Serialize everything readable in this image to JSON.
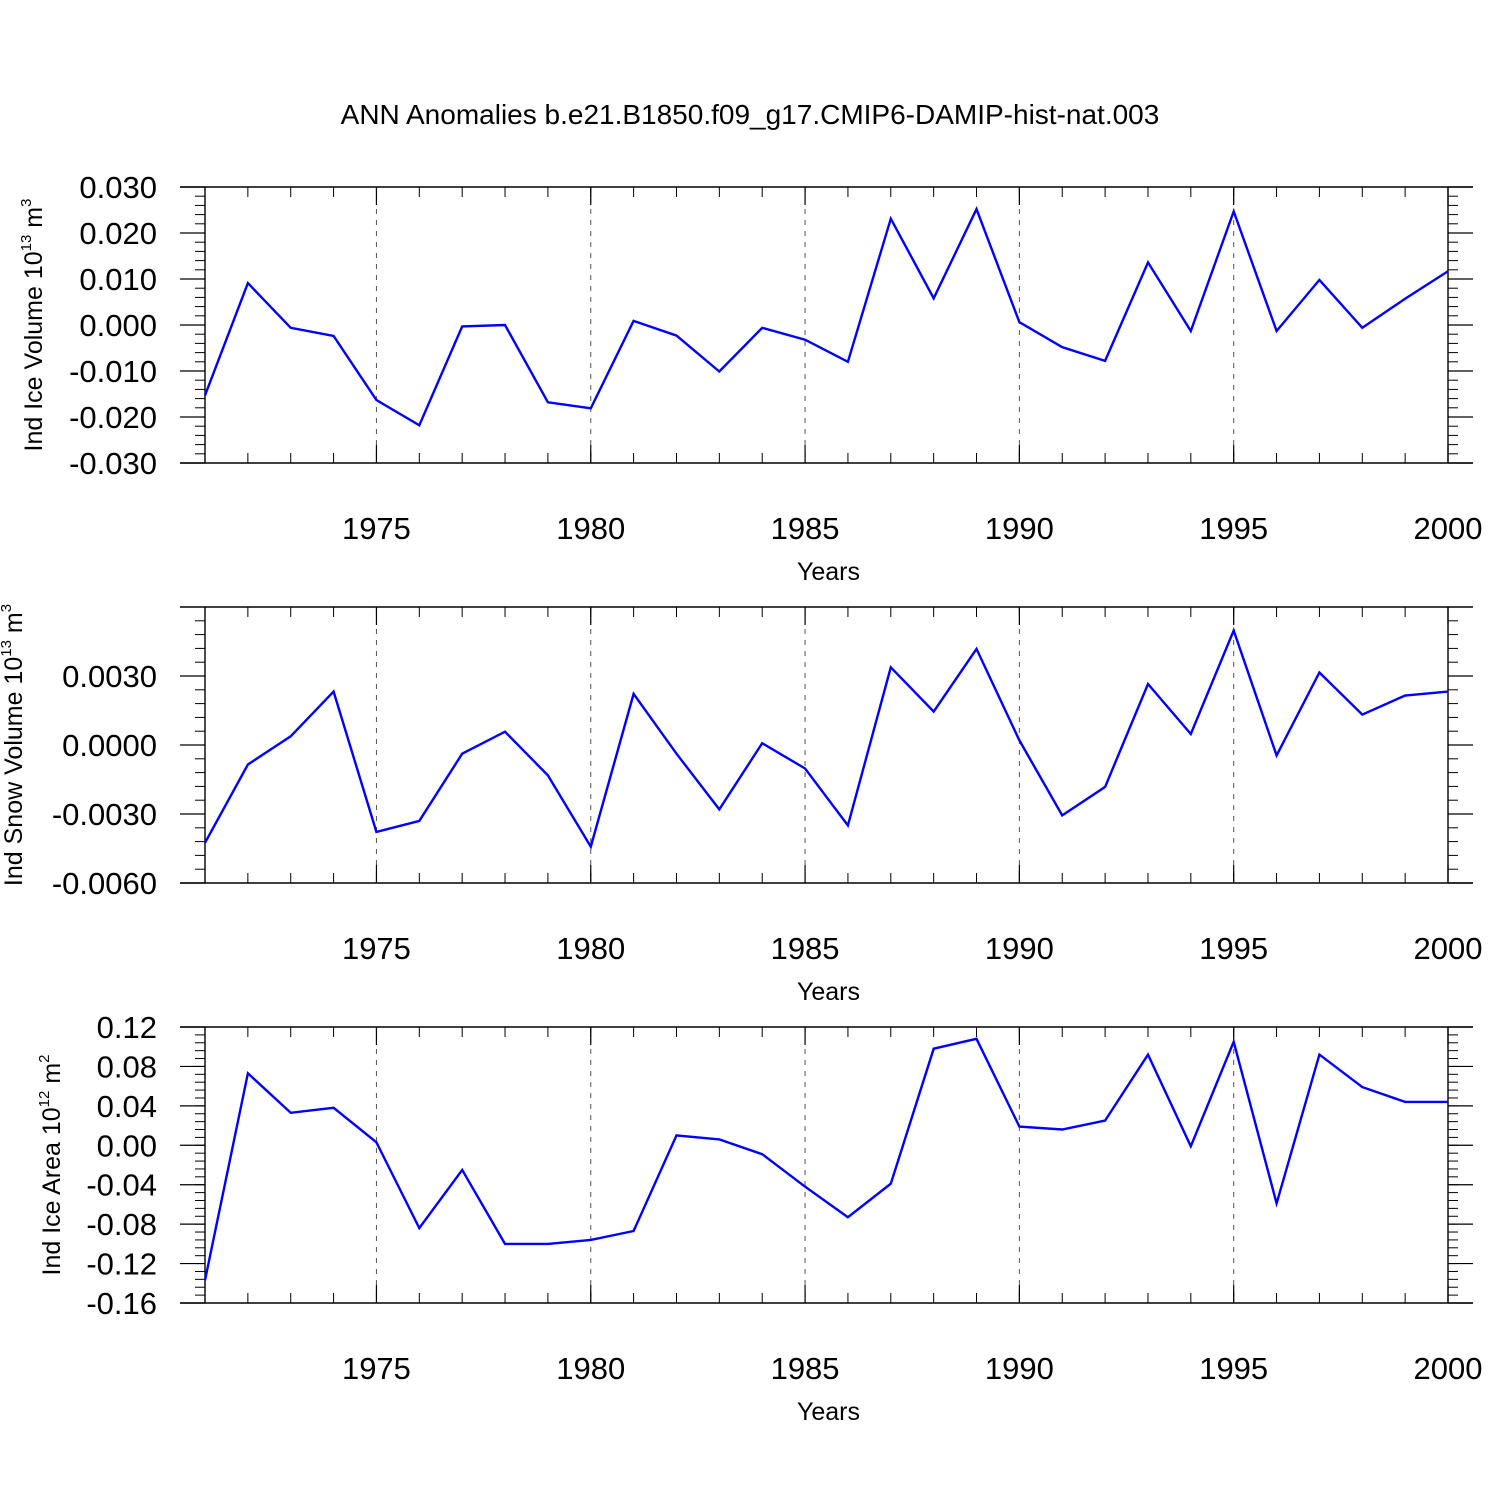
{
  "title": "ANN Anomalies b.e21.B1850.f09_g17.CMIP6-DAMIP-hist-nat.003",
  "line_color": "#0000ff",
  "chart_data": [
    {
      "type": "line",
      "name": "ind-ice-volume",
      "ylabel": {
        "base": "Ind Ice Volume 10",
        "exp1": "13",
        "unit": " m",
        "exp2": "3"
      },
      "xlabel": "Years",
      "xlim": [
        1971,
        2000
      ],
      "ylim": [
        -0.03,
        0.03
      ],
      "xticks": [
        1975,
        1980,
        1985,
        1990,
        1995,
        2000
      ],
      "xtick_labels": [
        "1975",
        "1980",
        "1985",
        "1990",
        "1995",
        "2000"
      ],
      "yticks": [
        -0.03,
        -0.02,
        -0.01,
        0.0,
        0.01,
        0.02,
        0.03
      ],
      "ytick_labels": [
        "-0.030",
        "-0.020",
        "-0.010",
        "0.000",
        "0.010",
        "0.020",
        "0.030"
      ],
      "grid": "vertical dashed at major x ticks",
      "x": [
        1971,
        1972,
        1973,
        1974,
        1975,
        1976,
        1977,
        1978,
        1979,
        1980,
        1981,
        1982,
        1983,
        1984,
        1985,
        1986,
        1987,
        1988,
        1989,
        1990,
        1991,
        1992,
        1993,
        1994,
        1995,
        1996,
        1997,
        1998,
        1999,
        2000
      ],
      "values": [
        -0.0153,
        0.0091,
        -0.0006,
        -0.0024,
        -0.0163,
        -0.0218,
        -0.0003,
        0.0,
        -0.0168,
        -0.0181,
        0.0009,
        -0.0023,
        -0.0101,
        -0.0006,
        -0.0032,
        -0.008,
        0.0231,
        0.0058,
        0.0252,
        0.0006,
        -0.0048,
        -0.0078,
        0.0136,
        -0.0013,
        0.0247,
        -0.0013,
        0.0098,
        -0.0006,
        0.0057,
        0.0117
      ]
    },
    {
      "type": "line",
      "name": "ind-snow-volume",
      "ylabel": {
        "base": "Ind Snow Volume 10",
        "exp1": "13",
        "unit": " m",
        "exp2": "3"
      },
      "xlabel": "Years",
      "xlim": [
        1971,
        2000
      ],
      "ylim": [
        -0.006,
        0.006
      ],
      "xticks": [
        1975,
        1980,
        1985,
        1990,
        1995,
        2000
      ],
      "xtick_labels": [
        "1975",
        "1980",
        "1985",
        "1990",
        "1995",
        "2000"
      ],
      "yticks": [
        -0.006,
        -0.003,
        0.0,
        0.003
      ],
      "ytick_labels": [
        "-0.0060",
        "-0.0030",
        "0.0000",
        "0.0030"
      ],
      "grid": "vertical dashed at major x ticks",
      "x": [
        1971,
        1972,
        1973,
        1974,
        1975,
        1976,
        1977,
        1978,
        1979,
        1980,
        1981,
        1982,
        1983,
        1984,
        1985,
        1986,
        1987,
        1988,
        1989,
        1990,
        1991,
        1992,
        1993,
        1994,
        1995,
        1996,
        1997,
        1998,
        1999,
        2000
      ],
      "values": [
        -0.00425,
        -0.00085,
        0.00038,
        0.00232,
        -0.00378,
        -0.0033,
        -0.00038,
        0.00058,
        -0.00132,
        -0.00442,
        0.00222,
        -0.00038,
        -0.0028,
        8e-05,
        -0.00102,
        -0.0035,
        0.00338,
        0.00145,
        0.00418,
        0.0002,
        -0.00306,
        -0.00182,
        0.00265,
        0.00048,
        0.00498,
        -0.00045,
        0.00315,
        0.00132,
        0.00215,
        0.00232
      ]
    },
    {
      "type": "line",
      "name": "ind-ice-area",
      "ylabel": {
        "base": "Ind Ice Area 10",
        "exp1": "12",
        "unit": " m",
        "exp2": "2"
      },
      "xlabel": "Years",
      "xlim": [
        1971,
        2000
      ],
      "ylim": [
        -0.16,
        0.12
      ],
      "xticks": [
        1975,
        1980,
        1985,
        1990,
        1995,
        2000
      ],
      "xtick_labels": [
        "1975",
        "1980",
        "1985",
        "1990",
        "1995",
        "2000"
      ],
      "yticks": [
        -0.16,
        -0.12,
        -0.08,
        -0.04,
        0.0,
        0.04,
        0.08,
        0.12
      ],
      "ytick_labels": [
        "-0.16",
        "-0.12",
        "-0.08",
        "-0.04",
        "0.00",
        "0.04",
        "0.08",
        "0.12"
      ],
      "grid": "vertical dashed at major x ticks",
      "x": [
        1971,
        1972,
        1973,
        1974,
        1975,
        1976,
        1977,
        1978,
        1979,
        1980,
        1981,
        1982,
        1983,
        1984,
        1985,
        1986,
        1987,
        1988,
        1989,
        1990,
        1991,
        1992,
        1993,
        1994,
        1995,
        1996,
        1997,
        1998,
        1999,
        2000
      ],
      "values": [
        -0.137,
        0.073,
        0.033,
        0.038,
        0.003,
        -0.084,
        -0.025,
        -0.1,
        -0.1,
        -0.096,
        -0.087,
        0.01,
        0.006,
        -0.009,
        -0.042,
        -0.073,
        -0.039,
        0.098,
        0.108,
        0.019,
        0.016,
        0.025,
        0.092,
        -0.001,
        0.105,
        -0.059,
        0.092,
        0.059,
        0.044,
        0.044
      ]
    }
  ]
}
